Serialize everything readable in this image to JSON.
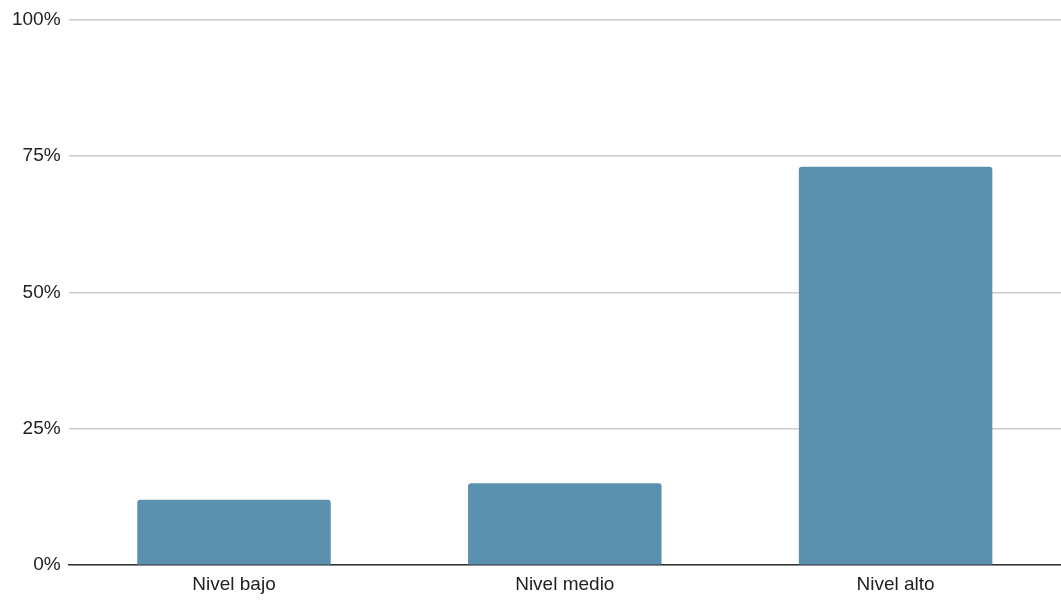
{
  "chart_data": {
    "type": "bar",
    "categories": [
      "Nivel bajo",
      "Nivel medio",
      "Nivel alto"
    ],
    "values": [
      12,
      15,
      73
    ],
    "color": "#5a91ae",
    "ylim": [
      0,
      100
    ],
    "yticks": [
      {
        "value": 0,
        "label": "0%"
      },
      {
        "value": 25,
        "label": "25%"
      },
      {
        "value": 50,
        "label": "50%"
      },
      {
        "value": 75,
        "label": "75%"
      },
      {
        "value": 100,
        "label": "100%"
      }
    ],
    "grid": "y",
    "legend": false
  }
}
